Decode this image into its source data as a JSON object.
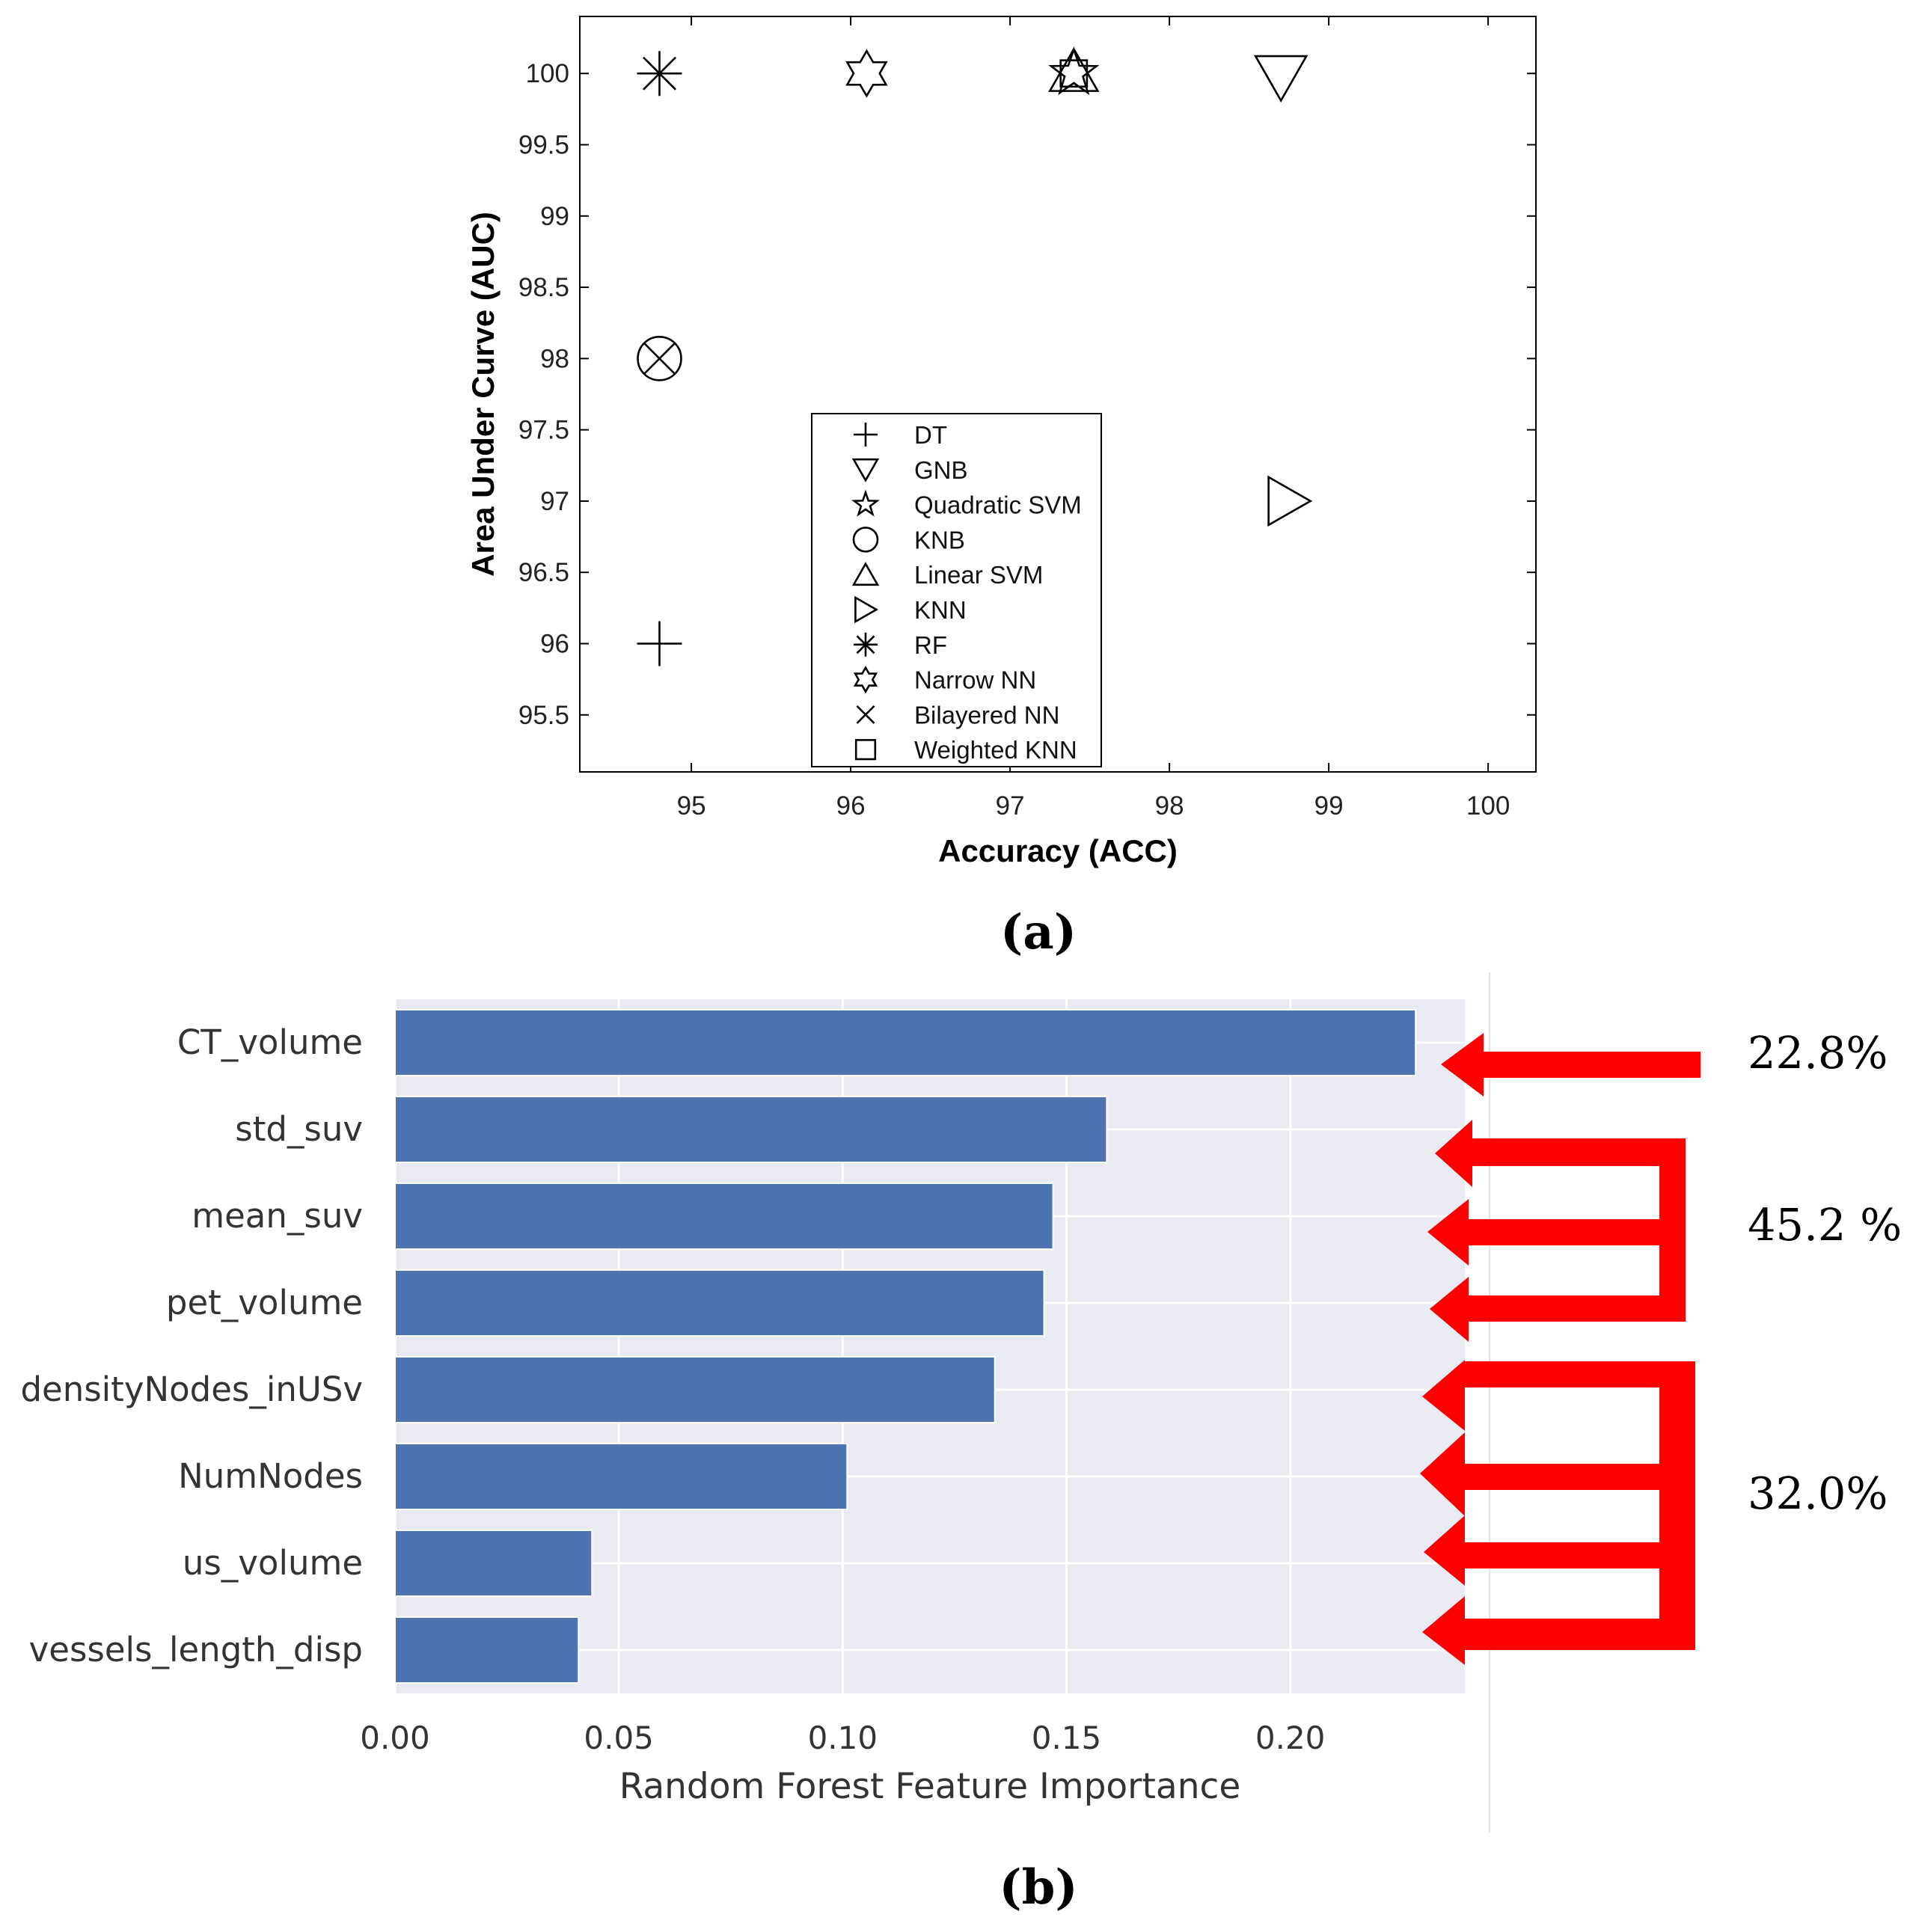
{
  "chart_data": [
    {
      "type": "scatter",
      "panel_label": "(a)",
      "xlabel": "Accuracy (ACC)",
      "ylabel": "Area Under Curve (AUC)",
      "xlim": [
        94.3,
        100.3
      ],
      "ylim": [
        95.1,
        100.4
      ],
      "xticks": [
        "95",
        "96",
        "97",
        "98",
        "99",
        "100"
      ],
      "yticks": [
        "95.5",
        "96",
        "96.5",
        "97",
        "97.5",
        "98",
        "98.5",
        "99",
        "99.5",
        "100"
      ],
      "legend_position": "lower-center",
      "series": [
        {
          "name": "DT",
          "marker": "plus",
          "x": 94.8,
          "y": 96.0
        },
        {
          "name": "GNB",
          "marker": "triangle-down",
          "x": 98.7,
          "y": 99.97
        },
        {
          "name": "Quadratic SVM",
          "marker": "pentagram",
          "x": 97.4,
          "y": 100.0
        },
        {
          "name": "KNB",
          "marker": "circle",
          "x": 94.8,
          "y": 98.0
        },
        {
          "name": "Linear SVM",
          "marker": "triangle-up",
          "x": 97.4,
          "y": 100.02
        },
        {
          "name": "KNN",
          "marker": "triangle-right",
          "x": 98.75,
          "y": 97.0
        },
        {
          "name": "RF",
          "marker": "asterisk",
          "x": 94.8,
          "y": 100.0
        },
        {
          "name": "Narrow NN",
          "marker": "hexagram",
          "x": 96.1,
          "y": 100.0
        },
        {
          "name": "Bilayered NN",
          "marker": "x",
          "x": 94.8,
          "y": 98.0
        },
        {
          "name": "Weighted KNN",
          "marker": "square",
          "x": 97.4,
          "y": 100.0
        }
      ]
    },
    {
      "type": "bar",
      "orientation": "horizontal",
      "panel_label": "(b)",
      "xlabel": "Random Forest Feature Importance",
      "xlim": [
        0,
        0.239
      ],
      "xticks": [
        "0.00",
        "0.05",
        "0.10",
        "0.15",
        "0.20"
      ],
      "bar_color": "#4c72b0",
      "categories": [
        "CT_volume",
        "std_suv",
        "mean_suv",
        "pet_volume",
        "densityNodes_inUSv",
        "NumNodes",
        "us_volume",
        "vessels_length_disp"
      ],
      "values": [
        0.228,
        0.159,
        0.147,
        0.145,
        0.134,
        0.101,
        0.044,
        0.041
      ],
      "annotations": [
        {
          "text": "22.8%",
          "features": [
            "CT_volume"
          ]
        },
        {
          "text": "45.2 %",
          "features": [
            "std_suv",
            "mean_suv",
            "pet_volume"
          ]
        },
        {
          "text": "32.0%",
          "features": [
            "densityNodes_inUSv",
            "NumNodes",
            "us_volume",
            "vessels_length_disp"
          ]
        }
      ],
      "arrow_color": "#ff0000"
    }
  ]
}
